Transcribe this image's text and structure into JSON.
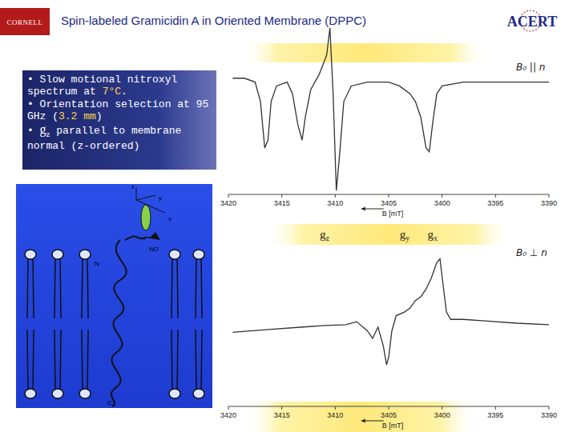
{
  "header": {
    "title": "Spin-labeled Gramicidin A in Oriented Membrane (DPPC)",
    "logo_left": "CORNELL",
    "logo_right": "ACERT"
  },
  "bullets": [
    {
      "parts": [
        {
          "text": "• Slow motional nitroxyl spectrum at "
        },
        {
          "text": "7°C",
          "style": "highlight"
        },
        {
          "text": "."
        }
      ]
    },
    {
      "parts": [
        {
          "text": "• Orientation selection at 95 GHz ("
        },
        {
          "text": "3.2 mm",
          "style": "highlight"
        },
        {
          "text": ")"
        }
      ]
    },
    {
      "parts": [
        {
          "text": "• "
        },
        {
          "text": "g",
          "style": "symbol"
        },
        {
          "text": "z",
          "style": "sub"
        },
        {
          "text": " parallel to membrane normal (z-ordered)"
        }
      ]
    }
  ],
  "diagram": {
    "labels": [
      "z",
      "y",
      "x",
      "NO",
      "N",
      "C"
    ]
  },
  "chart_data": [
    {
      "type": "line",
      "title": "B₀ || n",
      "x_label": "B [mT]",
      "xlim": [
        3420,
        3390
      ],
      "xticks": [
        3420,
        3415,
        3410,
        3405,
        3400,
        3395,
        3390
      ],
      "ylim": [
        -1.5,
        0.7
      ],
      "tick_labels": "x",
      "grid": false,
      "series": [
        {
          "color": "#333333",
          "x": [
            3419.6,
            3418.5,
            3417.5,
            3417,
            3416.6,
            3416.3,
            3416.0,
            3415.5,
            3414.5,
            3414,
            3413.5,
            3413.1,
            3412.8,
            3412.3,
            3411.5,
            3410.8,
            3410.5,
            3410.2,
            3409.9,
            3409.6,
            3409.2,
            3408.5,
            3407,
            3405,
            3404,
            3403,
            3402.5,
            3402,
            3401.5,
            3401.2,
            3400.9,
            3400.5,
            3400,
            3398,
            3395,
            3392,
            3390
          ],
          "values": [
            0.0,
            0.0,
            -0.05,
            -0.3,
            -0.9,
            -0.8,
            -0.3,
            -0.1,
            -0.05,
            -0.2,
            -0.6,
            -0.8,
            -0.5,
            -0.15,
            0.05,
            0.3,
            0.65,
            -0.2,
            -1.45,
            -1.0,
            -0.3,
            -0.1,
            -0.05,
            -0.05,
            -0.1,
            -0.2,
            -0.3,
            -0.5,
            -0.9,
            -0.95,
            -0.6,
            -0.2,
            -0.1,
            -0.05,
            -0.05,
            -0.05,
            -0.05
          ]
        }
      ],
      "annotations": [
        {
          "text": "g",
          "sub": "z",
          "x": 3411
        },
        {
          "text": "g",
          "sub": "y",
          "x": 3403.5
        },
        {
          "text": "g",
          "sub": "x",
          "x": 3400.9
        }
      ]
    },
    {
      "type": "line",
      "title": "B₀ ⊥ n",
      "x_label": "B [mT]",
      "xlim": [
        3420,
        3390
      ],
      "xticks": [
        3420,
        3415,
        3410,
        3405,
        3400,
        3395,
        3390
      ],
      "ylim": [
        -1.1,
        1.1
      ],
      "tick_labels": "x",
      "grid": false,
      "series": [
        {
          "color": "#333333",
          "x": [
            3419.6,
            3416,
            3413,
            3411,
            3409,
            3408,
            3407,
            3406.5,
            3406,
            3405.5,
            3405.2,
            3405,
            3404.7,
            3404.3,
            3403.5,
            3403,
            3402.5,
            3402,
            3401.5,
            3401,
            3400.5,
            3400.2,
            3399.9,
            3399.6,
            3399.2,
            3398,
            3396,
            3393,
            3390
          ],
          "values": [
            -0.12,
            -0.08,
            -0.05,
            -0.03,
            -0.02,
            0.02,
            -0.1,
            -0.2,
            -0.05,
            -0.3,
            -0.55,
            -0.45,
            -0.1,
            0.1,
            0.15,
            0.2,
            0.3,
            0.35,
            0.45,
            0.6,
            0.8,
            0.85,
            0.5,
            0.15,
            0.05,
            0.05,
            0.03,
            0.0,
            -0.02
          ]
        }
      ]
    }
  ]
}
